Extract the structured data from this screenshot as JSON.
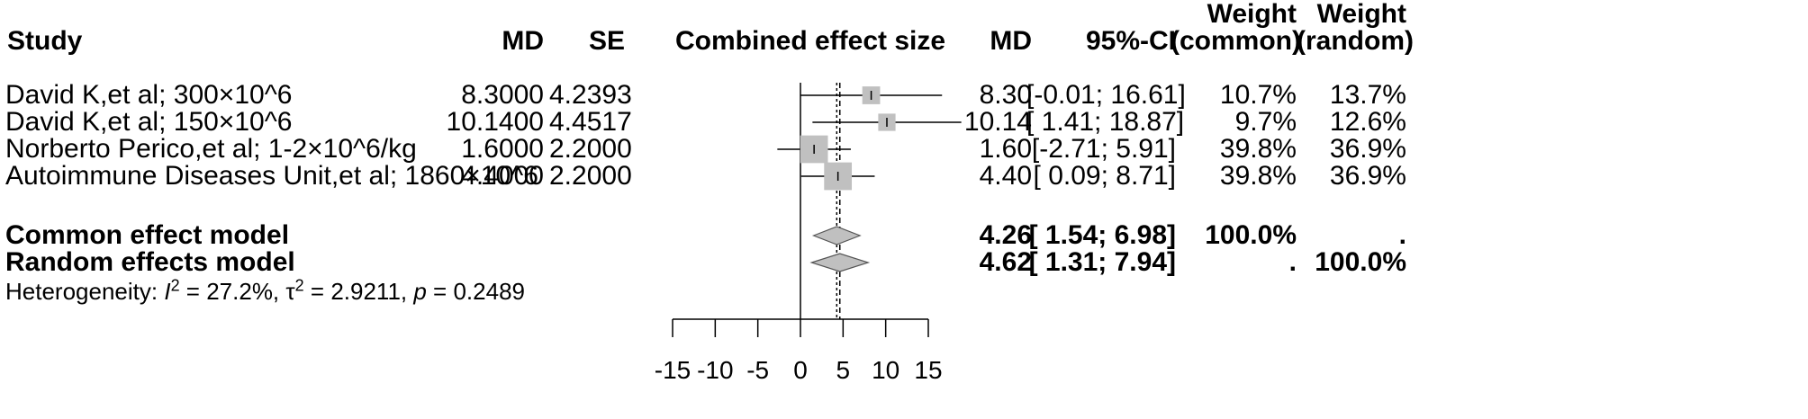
{
  "headers": {
    "study": "Study",
    "md": "MD",
    "se": "SE",
    "plot": "Combined effect size",
    "md2": "MD",
    "ci": "95%-CI",
    "weight_common_1": "Weight",
    "weight_common_2": "(common)",
    "weight_random_1": "Weight",
    "weight_random_2": "(random)"
  },
  "studies": [
    {
      "name": "David K,et al; 300×10^6",
      "md": "8.3000",
      "se": "4.2393",
      "md_fmt": "8.30",
      "ci": "[-0.01; 16.61]",
      "w_common": "10.7%",
      "w_random": "13.7%"
    },
    {
      "name": "David K,et al; 150×10^6",
      "md": "10.1400",
      "se": "4.4517",
      "md_fmt": "10.14",
      "ci": "[ 1.41; 18.87]",
      "w_common": "9.7%",
      "w_random": "12.6%"
    },
    {
      "name": "Norberto Perico,et al; 1-2×10^6/kg",
      "md": "1.6000",
      "se": "2.2000",
      "md_fmt": "1.60",
      "ci": "[-2.71; 5.91]",
      "w_common": "39.8%",
      "w_random": "36.9%"
    },
    {
      "name": "Autoimmune Diseases Unit,et al; 1860×10^6",
      "md": "4.4000",
      "se": "2.2000",
      "md_fmt": "4.40",
      "ci": "[ 0.09; 8.71]",
      "w_common": "39.8%",
      "w_random": "36.9%"
    }
  ],
  "models": [
    {
      "name": "Common effect model",
      "md_fmt": "4.26",
      "ci": "[ 1.54; 6.98]",
      "w_common": "100.0%",
      "w_random": "."
    },
    {
      "name": "Random effects model",
      "md_fmt": "4.62",
      "ci": "[ 1.31; 7.94]",
      "w_common": ".",
      "w_random": "100.0%"
    }
  ],
  "heterogeneity": {
    "label": "Heterogeneity: ",
    "i2_sym": "I",
    "i2_sup": "2",
    "i2_val": " = 27.2%, ",
    "tau_sym": "τ",
    "tau_sup": "2",
    "tau_val": " = 2.9211, ",
    "p_sym": "p",
    "p_val": " = 0.2489"
  },
  "chart_data": {
    "type": "forest",
    "xlim": [
      -15,
      15
    ],
    "ticks": [
      -15,
      -10,
      -5,
      0,
      5,
      10,
      15
    ],
    "tick_labels": [
      "-15",
      "-10",
      "-5",
      "0",
      "5",
      "10",
      "15"
    ],
    "null_line": 0,
    "studies": [
      {
        "md": 8.3,
        "lower": -0.01,
        "upper": 16.61,
        "weight_common": 10.7
      },
      {
        "md": 10.14,
        "lower": 1.41,
        "upper": 18.87,
        "weight_common": 9.7
      },
      {
        "md": 1.6,
        "lower": -2.71,
        "upper": 5.91,
        "weight_common": 39.8
      },
      {
        "md": 4.4,
        "lower": 0.09,
        "upper": 8.71,
        "weight_common": 39.8
      }
    ],
    "common": {
      "md": 4.26,
      "lower": 1.54,
      "upper": 6.98
    },
    "random": {
      "md": 4.62,
      "lower": 1.31,
      "upper": 7.94
    },
    "colors": {
      "square": "#c0c0c0",
      "diamond": "#c0c0c0",
      "line": "#000000"
    }
  }
}
